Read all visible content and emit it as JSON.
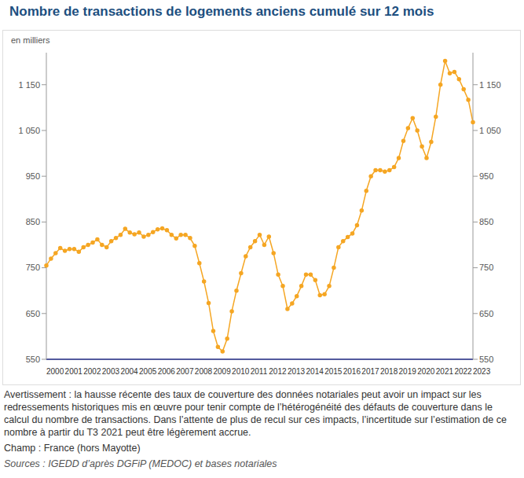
{
  "chart_data": {
    "type": "line",
    "title": "Nombre de transactions de logements anciens cumulé sur 12 mois",
    "y_label": "en milliers",
    "notes": [
      "Avertissement : la hausse récente des taux de couverture des données notariales peut avoir un impact sur les redressements historiques mis en œuvre pour tenir compte de l’hétérogénéité des défauts de couverture dans le calcul du nombre de transactions. Dans l’attente de plus de recul sur ces impacts, l’incertitude sur l’estimation de ce nombre à partir du T3 2021 peut être légèrement accrue.",
      "Champ : France (hors Mayotte)"
    ],
    "source": "Sources : IGEDD d’après DGFiP (MEDOC) et bases notariales",
    "categories": [
      "2000",
      null,
      null,
      null,
      "2001",
      null,
      null,
      null,
      "2002",
      null,
      null,
      null,
      "2003",
      null,
      null,
      null,
      "2004",
      null,
      null,
      null,
      "2005",
      null,
      null,
      null,
      "2006",
      null,
      null,
      null,
      "2007",
      null,
      null,
      null,
      "2008",
      null,
      null,
      null,
      "2009",
      null,
      null,
      null,
      "2010",
      null,
      null,
      null,
      "2011",
      null,
      null,
      null,
      "2012",
      null,
      null,
      null,
      "2013",
      null,
      null,
      null,
      "2014",
      null,
      null,
      null,
      "2015",
      null,
      null,
      null,
      "2016",
      null,
      null,
      null,
      "2017",
      null,
      null,
      null,
      "2018",
      null,
      null,
      null,
      "2019",
      null,
      null,
      null,
      "2020",
      null,
      null,
      null,
      "2021",
      null,
      null,
      null,
      "2022",
      null,
      null,
      null,
      "2023"
    ],
    "values": [
      755,
      770,
      782,
      793,
      787,
      791,
      791,
      785,
      795,
      800,
      805,
      812,
      800,
      795,
      808,
      815,
      822,
      835,
      827,
      823,
      827,
      818,
      822,
      828,
      834,
      836,
      832,
      822,
      814,
      822,
      822,
      815,
      798,
      760,
      720,
      673,
      612,
      577,
      567,
      595,
      655,
      700,
      738,
      775,
      795,
      808,
      822,
      800,
      818,
      782,
      735,
      710,
      660,
      672,
      688,
      710,
      735,
      735,
      723,
      690,
      692,
      710,
      750,
      795,
      808,
      817,
      825,
      843,
      875,
      918,
      950,
      963,
      963,
      960,
      963,
      970,
      990,
      1027,
      1055,
      1077,
      1050,
      1015,
      990,
      1025,
      1080,
      1150,
      1202,
      1175,
      1178,
      1162,
      1140,
      1117,
      1068
    ],
    "color": "#f5a623",
    "marker": "circle",
    "line_style": "solid",
    "grid": false,
    "ylim": [
      550,
      1220
    ],
    "yticks": [
      550,
      650,
      750,
      850,
      950,
      {
        "value": 1050,
        "label": "1 050"
      },
      {
        "value": 1150,
        "label": "1 150"
      }
    ],
    "y2lim": [
      550,
      1220
    ],
    "y2ticks": [
      550,
      650,
      750,
      850,
      950,
      {
        "value": 1050,
        "label": "1 050"
      },
      {
        "value": 1150,
        "label": "1 150"
      }
    ]
  }
}
